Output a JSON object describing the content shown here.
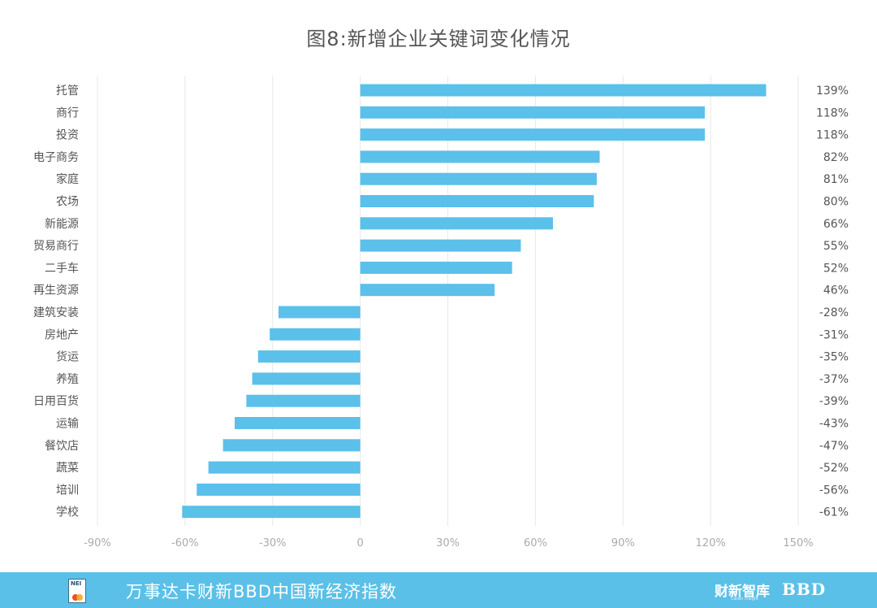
{
  "title": "图8:新增企业关键词变化情况",
  "chart_data": {
    "type": "bar",
    "orientation": "horizontal",
    "categories": [
      "托管",
      "商行",
      "投资",
      "电子商务",
      "家庭",
      "农场",
      "新能源",
      "贸易商行",
      "二手车",
      "再生资源",
      "建筑安装",
      "房地产",
      "货运",
      "养殖",
      "日用百货",
      "运输",
      "餐饮店",
      "蔬菜",
      "培训",
      "学校"
    ],
    "values": [
      139,
      118,
      118,
      82,
      81,
      80,
      66,
      55,
      52,
      46,
      -28,
      -31,
      -35,
      -37,
      -39,
      -43,
      -47,
      -52,
      -56,
      -61
    ],
    "value_labels": [
      "139%",
      "118%",
      "118%",
      "82%",
      "81%",
      "80%",
      "66%",
      "55%",
      "52%",
      "46%",
      "-28%",
      "-31%",
      "-35%",
      "-37%",
      "-39%",
      "-43%",
      "-47%",
      "-52%",
      "-56%",
      "-61%"
    ],
    "x_ticks": [
      -90,
      -60,
      -30,
      0,
      30,
      60,
      90,
      120,
      150
    ],
    "x_tick_labels": [
      "-90%",
      "-60%",
      "-30%",
      "0",
      "30%",
      "60%",
      "90%",
      "120%",
      "150%"
    ],
    "xlim": [
      -90,
      150
    ],
    "grid": true,
    "colors": {
      "bar": "#5bc0ea",
      "grid": "#e8e8e8",
      "label": "#555555",
      "tick": "#aaaaaa"
    }
  },
  "footer": {
    "logo_text": "NEI",
    "text": "万事达卡财新BBD中国新经济指数",
    "brand": "财新智库",
    "brand_sub": "Caixin Insight",
    "bbd": "BBD",
    "background": "#5bc0e8"
  }
}
